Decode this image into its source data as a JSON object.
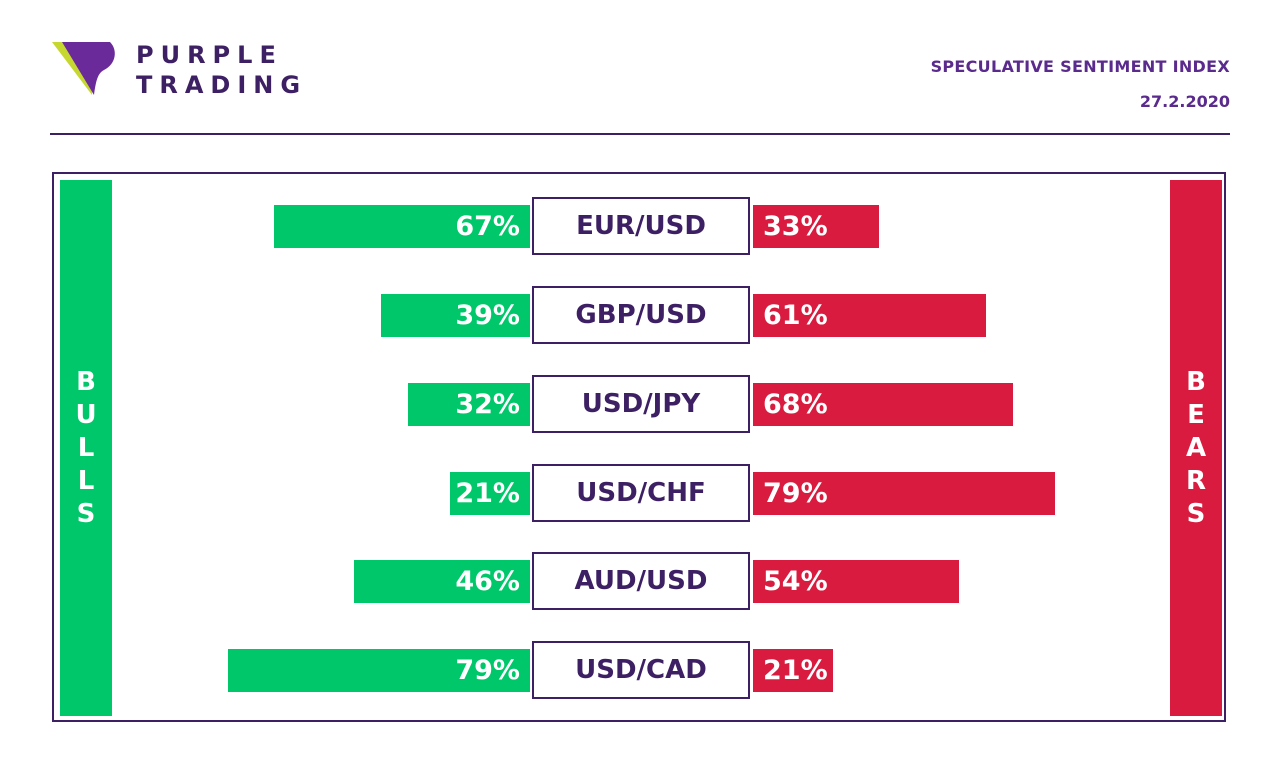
{
  "brand": {
    "line1": "PURPLE",
    "line2": "TRADING"
  },
  "header": {
    "title": "SPECULATIVE SENTIMENT INDEX",
    "date": "27.2.2020"
  },
  "colors": {
    "bull": "#00c86a",
    "bear": "#d81b3e",
    "brand_purple": "#3d1f63"
  },
  "chart_data": {
    "type": "bar",
    "title": "SPECULATIVE SENTIMENT INDEX",
    "orientation": "horizontal-diverging",
    "categories": [
      "EUR/USD",
      "GBP/USD",
      "USD/JPY",
      "USD/CHF",
      "AUD/USD",
      "USD/CAD"
    ],
    "series": [
      {
        "name": "BULLS",
        "values": [
          67,
          39,
          32,
          21,
          46,
          79
        ],
        "labels": [
          "67%",
          "39%",
          "32%",
          "21%",
          "46%",
          "79%"
        ],
        "color": "#00c86a"
      },
      {
        "name": "BEARS",
        "values": [
          33,
          61,
          68,
          79,
          54,
          21
        ],
        "labels": [
          "33%",
          "61%",
          "68%",
          "79%",
          "54%",
          "21%"
        ],
        "color": "#d81b3e"
      }
    ],
    "xlim": [
      0,
      100
    ]
  }
}
